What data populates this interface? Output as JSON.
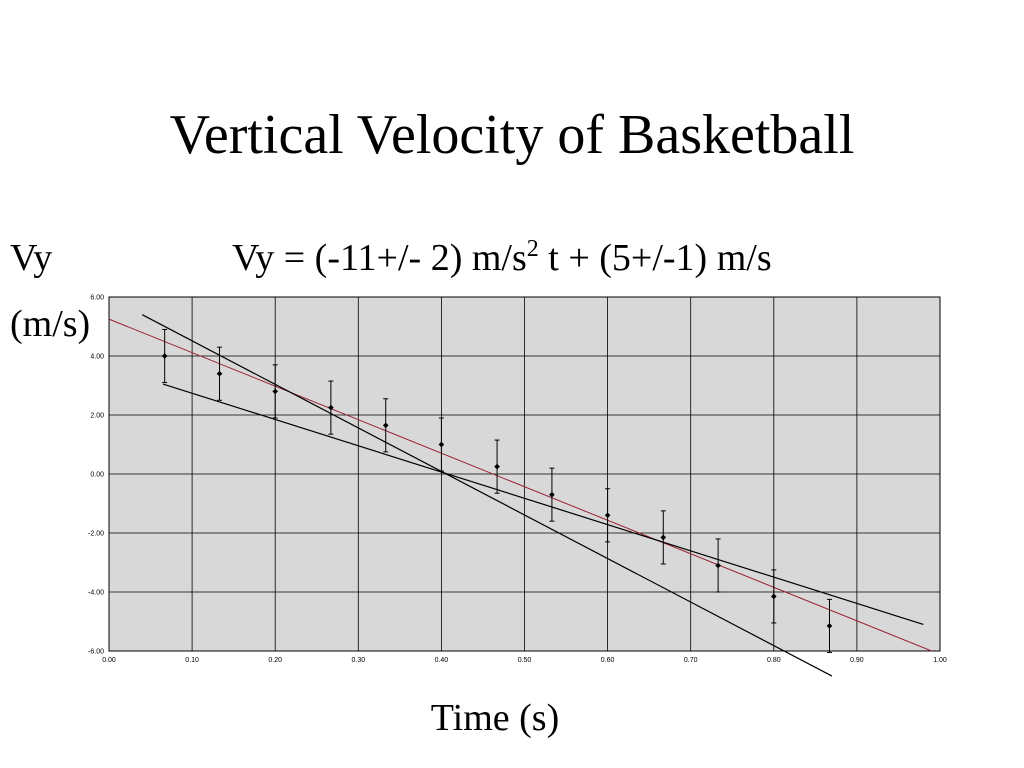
{
  "slide": {
    "title": "Vertical Velocity of Basketball"
  },
  "equation": {
    "prefix": "Vy = (-11+/- 2) m/s",
    "superscript": "2",
    "suffix": " t + (5+/-1) m/s"
  },
  "chart_data": {
    "type": "scatter",
    "title": "Vertical Velocity of Basketball",
    "ylabel_lines": [
      "Vy",
      "(m/s)"
    ],
    "xlabel": "Time (s)",
    "xlim": [
      0.0,
      1.0
    ],
    "ylim": [
      -6.0,
      6.0
    ],
    "x_ticks": [
      "0.00",
      "0.10",
      "0.20",
      "0.30",
      "0.40",
      "0.50",
      "0.60",
      "0.70",
      "0.80",
      "0.90",
      "1.00"
    ],
    "y_ticks": [
      "6.00",
      "4.00",
      "2.00",
      "0.00",
      "-2.00",
      "-4.00",
      "-6.00"
    ],
    "grid": true,
    "legend": "none",
    "series": [
      {
        "x": [
          0.067,
          0.133,
          0.2,
          0.267,
          0.333,
          0.4,
          0.467,
          0.533,
          0.6,
          0.667,
          0.733,
          0.8,
          0.867
        ],
        "y": [
          4.0,
          3.4,
          2.8,
          2.25,
          1.65,
          1.0,
          0.25,
          -0.7,
          -1.4,
          -2.15,
          -3.1,
          -4.15,
          -5.15
        ],
        "y_error": 0.9
      }
    ],
    "lines": [
      {
        "role": "best-fit",
        "color": "#9b2335",
        "x": [
          0.0,
          0.99
        ],
        "y": [
          5.25,
          -6.0
        ]
      },
      {
        "role": "max-slope",
        "color": "#000000",
        "x": [
          0.04,
          0.87
        ],
        "y": [
          5.4,
          -6.85
        ]
      },
      {
        "role": "min-slope",
        "color": "#000000",
        "x": [
          0.065,
          0.98
        ],
        "y": [
          3.05,
          -5.1
        ]
      }
    ],
    "colors": {
      "plot_background": "#d8d8d8",
      "grid": "#000000",
      "points": "#000000"
    }
  }
}
